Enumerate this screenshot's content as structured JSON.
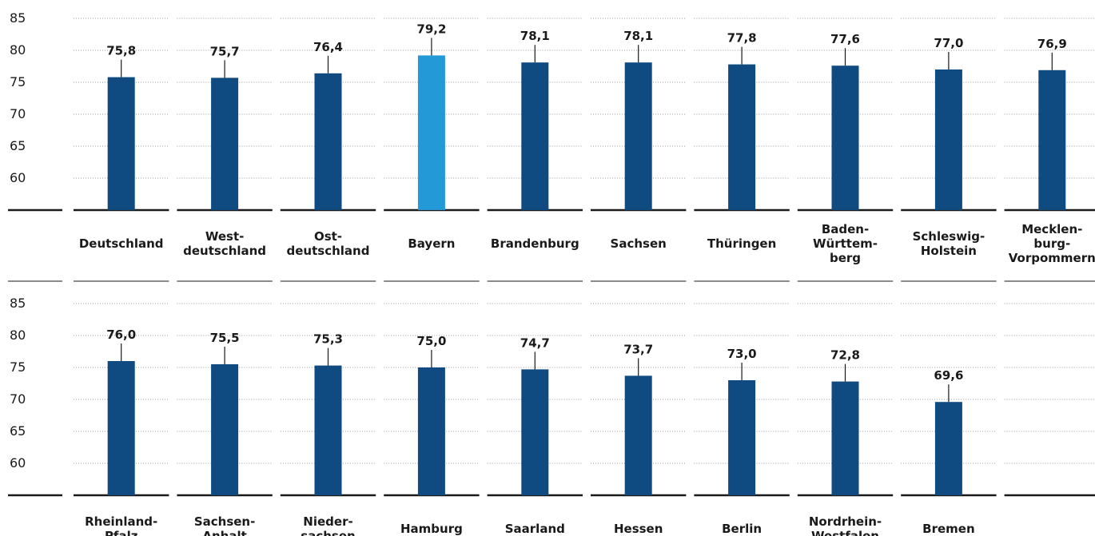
{
  "chart_data": [
    {
      "type": "bar",
      "title": "",
      "xlabel": "",
      "ylabel": "",
      "ylim": [
        55,
        85
      ],
      "yticks": [
        "60",
        "65",
        "70",
        "75",
        "80",
        "85"
      ],
      "grid": "dotted horizontal",
      "categories": [
        [
          "Deutschland"
        ],
        [
          "West-",
          "deutschland"
        ],
        [
          "Ost-",
          "deutschland"
        ],
        [
          "Bayern"
        ],
        [
          "Brandenburg"
        ],
        [
          "Sachsen"
        ],
        [
          "Thüringen"
        ],
        [
          "Baden-",
          "Württem-",
          "berg"
        ],
        [
          "Schleswig-",
          "Holstein"
        ],
        [
          "Mecklen-",
          "burg-",
          "Vorpommern"
        ]
      ],
      "values": [
        75.8,
        75.7,
        76.4,
        79.2,
        78.1,
        78.1,
        77.8,
        77.6,
        77.0,
        76.9
      ],
      "value_labels": [
        "75,8",
        "75,7",
        "76,4",
        "79,2",
        "78,1",
        "78,1",
        "77,8",
        "77,6",
        "77,0",
        "76,9"
      ],
      "bar_colors": [
        "#0f4a80",
        "#0f4a80",
        "#0f4a80",
        "#2399d8",
        "#0f4a80",
        "#0f4a80",
        "#0f4a80",
        "#0f4a80",
        "#0f4a80",
        "#0f4a80"
      ]
    },
    {
      "type": "bar",
      "title": "",
      "xlabel": "",
      "ylabel": "",
      "ylim": [
        55,
        85
      ],
      "yticks": [
        "60",
        "65",
        "70",
        "75",
        "80",
        "85"
      ],
      "grid": "dotted horizontal",
      "categories": [
        [
          "Rheinland-",
          "Pfalz"
        ],
        [
          "Sachsen-",
          "Anhalt"
        ],
        [
          "Nieder-",
          "sachsen"
        ],
        [
          "Hamburg"
        ],
        [
          "Saarland"
        ],
        [
          "Hessen"
        ],
        [
          "Berlin"
        ],
        [
          "Nordrhein-",
          "Westfalen"
        ],
        [
          "Bremen"
        ]
      ],
      "values": [
        76.0,
        75.5,
        75.3,
        75.0,
        74.7,
        73.7,
        73.0,
        72.8,
        69.6
      ],
      "value_labels": [
        "76,0",
        "75,5",
        "75,3",
        "75,0",
        "74,7",
        "73,7",
        "73,0",
        "72,8",
        "69,6"
      ],
      "bar_colors": [
        "#0f4a80",
        "#0f4a80",
        "#0f4a80",
        "#0f4a80",
        "#0f4a80",
        "#0f4a80",
        "#0f4a80",
        "#0f4a80",
        "#0f4a80"
      ]
    }
  ],
  "colors": {
    "bar": "#0f4a80",
    "highlight": "#2399d8",
    "text": "#1a1a1a",
    "axis": "#1a1a1a",
    "grid": "#9a9a9a"
  }
}
